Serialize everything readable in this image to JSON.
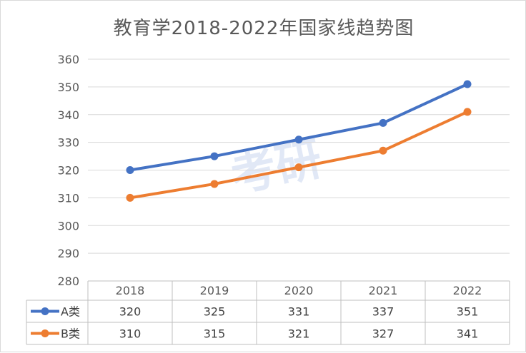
{
  "chart_data": {
    "type": "line",
    "title": "教育学2018-2022年国家线趋势图",
    "categories": [
      "2018",
      "2019",
      "2020",
      "2021",
      "2022"
    ],
    "series": [
      {
        "name": "A类",
        "values": [
          320,
          325,
          331,
          337,
          351
        ],
        "color": "#4472c4"
      },
      {
        "name": "B类",
        "values": [
          310,
          315,
          321,
          327,
          341
        ],
        "color": "#ed7d31"
      }
    ],
    "ylim": [
      280,
      360
    ],
    "yticks": [
      "360",
      "350",
      "340",
      "330",
      "320",
      "310",
      "300",
      "290",
      "280"
    ],
    "grid": true,
    "legend": "data-table",
    "watermark": "考研"
  }
}
